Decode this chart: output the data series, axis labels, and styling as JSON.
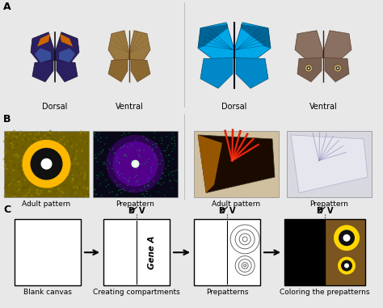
{
  "panel_labels": [
    "A",
    "B",
    "C"
  ],
  "section_A_labels": [
    "Dorsal",
    "Ventral",
    "Dorsal",
    "Ventral"
  ],
  "section_B_labels": [
    "Adult pattern",
    "Prepattern",
    "Adult pattern",
    "Prepattern"
  ],
  "section_C_labels": [
    "Blank canvas",
    "Creating compartments",
    "Prepatterns",
    "Coloring the prepatterns"
  ],
  "gene_label": "Gene A",
  "dv_label_D": "D",
  "dv_label_V": "V",
  "bg_color": "#e8e8e8",
  "black_left_color": "#000000",
  "brown_right_color": "#7a5520",
  "yellow_ring_color": "#FFD700",
  "white_center_color": "#ffffff",
  "label_fontsize": 6.5,
  "panel_label_fontsize": 9,
  "gene_fontsize": 7,
  "B_eyespot_bg": "#8a8000",
  "B_prepattern_bg": "#111111",
  "B_wing_adult_bg": "#d0c8b0",
  "B_wing_pre_bg": "#e8e8e8"
}
